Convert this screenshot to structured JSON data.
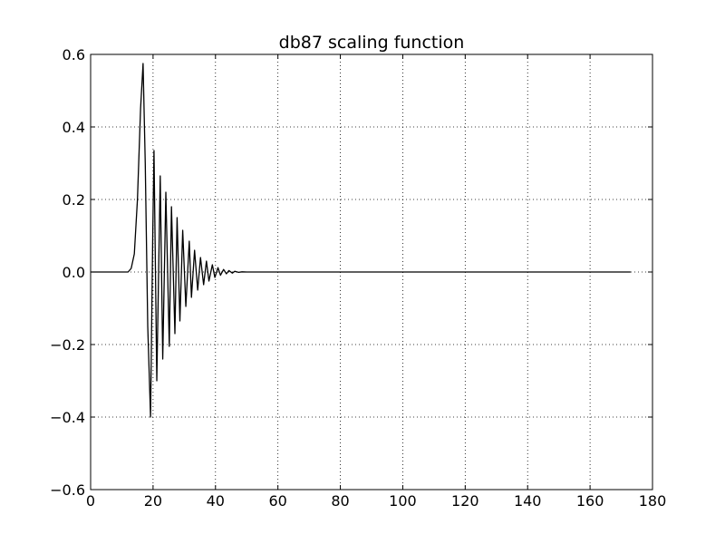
{
  "chart_data": {
    "type": "line",
    "title": "db87 scaling function",
    "xlabel": "",
    "ylabel": "",
    "xlim": [
      0,
      180
    ],
    "ylim": [
      -0.6,
      0.6
    ],
    "xticks": [
      0,
      20,
      40,
      60,
      80,
      100,
      120,
      140,
      160,
      180
    ],
    "yticks": [
      -0.6,
      -0.4,
      -0.2,
      0.0,
      0.2,
      0.4,
      0.6
    ],
    "xtick_labels": [
      "0",
      "20",
      "40",
      "60",
      "80",
      "100",
      "120",
      "140",
      "160",
      "180"
    ],
    "ytick_labels": [
      "−0.6",
      "−0.4",
      "−0.2",
      "0.0",
      "0.2",
      "0.4",
      "0.6"
    ],
    "grid": true,
    "grid_style": "dotted",
    "series": [
      {
        "color": "#000000",
        "x": [
          0,
          12,
          13,
          14,
          15,
          16,
          16.8,
          17.5,
          18.3,
          19.2,
          19.9,
          20.3,
          21.2,
          22.3,
          23.1,
          24.1,
          25.2,
          25.9,
          27.0,
          27.7,
          28.6,
          29.5,
          30.5,
          31.6,
          32.3,
          33.3,
          34.3,
          35.2,
          36.2,
          37.1,
          37.9,
          39.0,
          39.8,
          40.8,
          41.6,
          42.6,
          43.5,
          44.3,
          45.4,
          46.2,
          47.4,
          48.5,
          50,
          60,
          80,
          100,
          120,
          140,
          160,
          173
        ],
        "y": [
          0.0,
          0.0,
          0.01,
          0.05,
          0.2,
          0.45,
          0.575,
          0.3,
          -0.15,
          -0.4,
          0.1,
          0.335,
          -0.3,
          0.265,
          -0.24,
          0.22,
          -0.205,
          0.18,
          -0.17,
          0.15,
          -0.135,
          0.115,
          -0.095,
          0.085,
          -0.07,
          0.06,
          -0.05,
          0.04,
          -0.035,
          0.03,
          -0.025,
          0.02,
          -0.015,
          0.012,
          -0.009,
          0.007,
          -0.005,
          0.004,
          -0.003,
          0.002,
          -0.001,
          0.0005,
          0.0,
          0.0,
          0.0,
          0.0,
          0.0,
          0.0,
          0.0,
          0.0
        ]
      }
    ]
  }
}
